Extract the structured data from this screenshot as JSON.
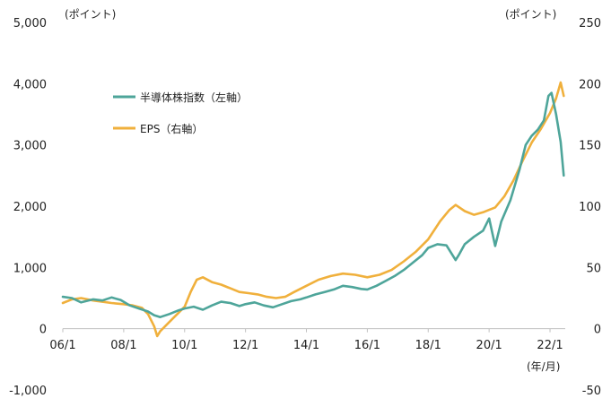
{
  "chart_data": {
    "type": "line",
    "title": "",
    "xlabel": "",
    "x_unit_label": "(年/月)",
    "y_left_unit": "(ポイント)",
    "y_right_unit": "(ポイント)",
    "ylim_left": [
      -1000,
      5000
    ],
    "ylim_right": [
      -50,
      250
    ],
    "y_left_ticks": [
      "5,000",
      "4,000",
      "3,000",
      "2,000",
      "1,000",
      "0",
      "-1,000"
    ],
    "y_left_tick_values": [
      5000,
      4000,
      3000,
      2000,
      1000,
      0,
      -1000
    ],
    "y_right_ticks": [
      "250",
      "200",
      "150",
      "100",
      "50",
      "0",
      "-50"
    ],
    "y_right_tick_values": [
      250,
      200,
      150,
      100,
      50,
      0,
      -50
    ],
    "x_ticks": [
      "06/1",
      "08/1",
      "10/1",
      "12/1",
      "14/1",
      "16/1",
      "18/1",
      "20/1",
      "22/1"
    ],
    "x_tick_values": [
      2006.0,
      2008.0,
      2010.0,
      2012.0,
      2014.0,
      2016.0,
      2018.0,
      2020.0,
      2022.0
    ],
    "xlim": [
      2006.0,
      2022.5
    ],
    "legend_position": "top-left",
    "series": [
      {
        "name": "半導体株指数（左軸）",
        "axis": "left",
        "color": "#4ea59a",
        "x": [
          2006.0,
          2006.3,
          2006.6,
          2007.0,
          2007.3,
          2007.6,
          2007.9,
          2008.2,
          2008.5,
          2008.8,
          2009.0,
          2009.2,
          2009.5,
          2009.8,
          2010.0,
          2010.3,
          2010.6,
          2010.9,
          2011.2,
          2011.5,
          2011.8,
          2012.0,
          2012.3,
          2012.6,
          2012.9,
          2013.2,
          2013.5,
          2013.8,
          2014.0,
          2014.3,
          2014.6,
          2014.9,
          2015.2,
          2015.5,
          2015.8,
          2016.0,
          2016.3,
          2016.6,
          2016.9,
          2017.2,
          2017.5,
          2017.8,
          2018.0,
          2018.3,
          2018.6,
          2018.9,
          2019.0,
          2019.2,
          2019.5,
          2019.8,
          2020.0,
          2020.2,
          2020.4,
          2020.7,
          2021.0,
          2021.2,
          2021.4,
          2021.6,
          2021.8,
          2021.95,
          2022.05,
          2022.2,
          2022.35,
          2022.45
        ],
        "values": [
          520,
          500,
          430,
          480,
          460,
          510,
          470,
          380,
          330,
          280,
          220,
          190,
          240,
          300,
          330,
          360,
          310,
          380,
          440,
          420,
          370,
          400,
          430,
          380,
          350,
          400,
          450,
          480,
          510,
          560,
          600,
          640,
          700,
          680,
          650,
          640,
          700,
          780,
          860,
          960,
          1080,
          1200,
          1320,
          1380,
          1360,
          1120,
          1200,
          1380,
          1500,
          1600,
          1800,
          1350,
          1750,
          2100,
          2600,
          3000,
          3150,
          3250,
          3400,
          3800,
          3850,
          3500,
          3050,
          2500
        ]
      },
      {
        "name": "EPS（右軸）",
        "axis": "right",
        "color": "#f0b03c",
        "x": [
          2006.0,
          2006.3,
          2006.6,
          2007.0,
          2007.3,
          2007.6,
          2008.0,
          2008.3,
          2008.6,
          2008.8,
          2009.0,
          2009.1,
          2009.2,
          2009.4,
          2009.6,
          2009.8,
          2010.0,
          2010.2,
          2010.4,
          2010.6,
          2010.9,
          2011.2,
          2011.5,
          2011.8,
          2012.1,
          2012.4,
          2012.7,
          2013.0,
          2013.3,
          2013.6,
          2014.0,
          2014.4,
          2014.8,
          2015.2,
          2015.6,
          2016.0,
          2016.4,
          2016.8,
          2017.2,
          2017.6,
          2018.0,
          2018.4,
          2018.7,
          2018.9,
          2019.2,
          2019.5,
          2019.8,
          2020.0,
          2020.2,
          2020.5,
          2020.8,
          2021.1,
          2021.4,
          2021.7,
          2022.0,
          2022.2,
          2022.35,
          2022.45
        ],
        "values": [
          21,
          24,
          25,
          23,
          22,
          21,
          20,
          19,
          17,
          12,
          2,
          -6,
          -2,
          3,
          8,
          13,
          18,
          30,
          40,
          42,
          38,
          36,
          33,
          30,
          29,
          28,
          26,
          25,
          26,
          30,
          35,
          40,
          43,
          45,
          44,
          42,
          44,
          48,
          55,
          63,
          73,
          88,
          97,
          101,
          96,
          93,
          95,
          97,
          99,
          108,
          121,
          137,
          152,
          163,
          176,
          188,
          201,
          190
        ]
      }
    ]
  }
}
